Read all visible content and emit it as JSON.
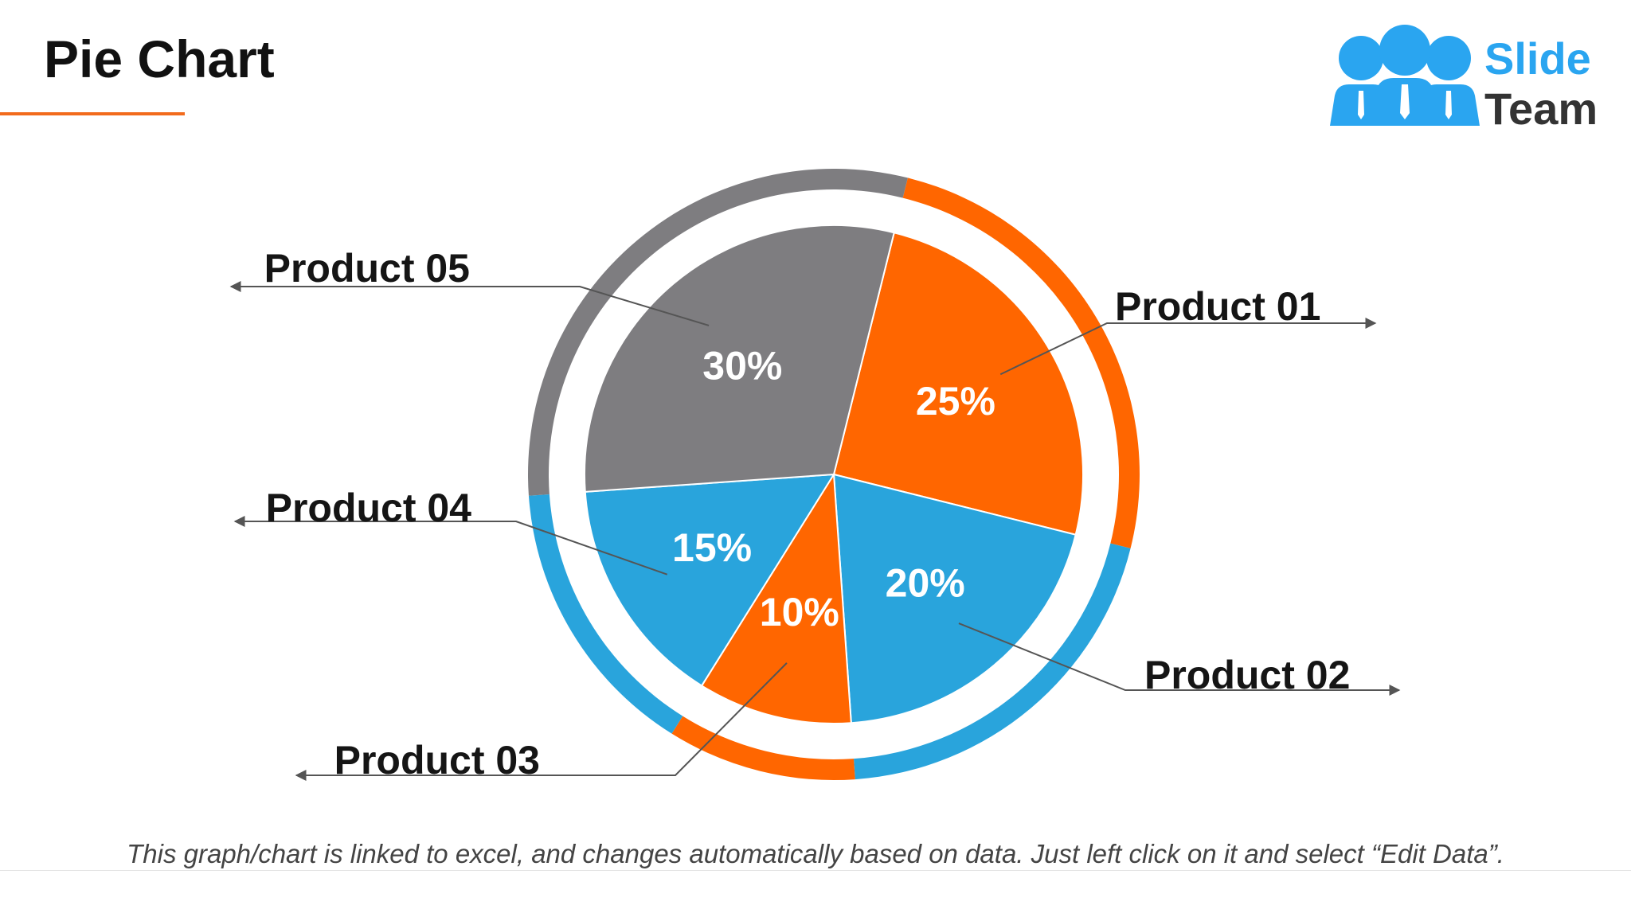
{
  "slide": {
    "title": "Pie Chart",
    "footer": "This graph/chart is linked to excel, and changes automatically based on data. Just left click on it and select “Edit Data”.",
    "logo": {
      "line1": "Slide",
      "line2": "Team",
      "icon": "people-group-icon",
      "color": "#2aa5f0"
    }
  },
  "colors": {
    "orange": "#ff6600",
    "blue": "#29a4dc",
    "gray": "#7e7d80",
    "accent_line": "#f26b1d"
  },
  "chart_data": {
    "type": "pie",
    "title": "",
    "categories": [
      "Product 01",
      "Product 02",
      "Product 03",
      "Product 04",
      "Product 05"
    ],
    "values": [
      25,
      20,
      10,
      15,
      30
    ],
    "value_labels": [
      "25%",
      "20%",
      "10%",
      "15%",
      "30%"
    ],
    "slice_colors": [
      "#ff6600",
      "#29a4dc",
      "#ff6600",
      "#29a4dc",
      "#7e7d80"
    ],
    "legend": "none"
  }
}
